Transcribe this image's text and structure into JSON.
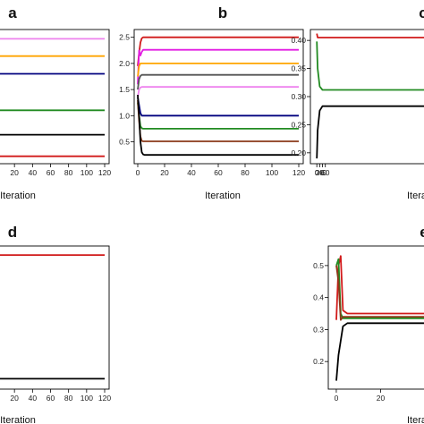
{
  "colors": {
    "red": "#d11a1a",
    "magenta": "#e21ce2",
    "orange": "#ffa500",
    "gray": "#555555",
    "violet": "#ee82ee",
    "navy": "#00007f",
    "green": "#228b22",
    "brown": "#8b3a1a",
    "black": "#000000"
  },
  "chart_data": [
    {
      "panel": "a",
      "type": "line",
      "xlabel": "Iteration",
      "ylabel": "",
      "xlim": [
        0,
        120
      ],
      "ylim": [
        -0.05,
        2.6
      ],
      "xticks": [
        20,
        40,
        60,
        80,
        100,
        120
      ],
      "yticks": [],
      "series": [
        {
          "color": "violet",
          "y_final": 2.48
        },
        {
          "color": "orange",
          "y_final": 2.12
        },
        {
          "color": "navy",
          "y_final": 1.75
        },
        {
          "color": "green",
          "y_final": 0.99
        },
        {
          "color": "black",
          "y_final": 0.48
        },
        {
          "color": "red",
          "y_final": 0.03
        }
      ]
    },
    {
      "panel": "b",
      "type": "line",
      "xlabel": "Iteration",
      "ylabel": "",
      "xlim": [
        0,
        120
      ],
      "ylim": [
        0.15,
        2.58
      ],
      "xticks": [
        0,
        20,
        40,
        60,
        80,
        100,
        120
      ],
      "yticks": [
        0.5,
        1.0,
        1.5,
        2.0,
        2.5
      ],
      "series": [
        {
          "color": "red",
          "x": [
            0,
            1,
            2,
            3,
            4,
            120
          ],
          "y": [
            1.95,
            2.2,
            2.4,
            2.48,
            2.5,
            2.5
          ]
        },
        {
          "color": "magenta",
          "x": [
            0,
            1,
            2,
            3,
            4,
            120
          ],
          "y": [
            1.6,
            2.25,
            2.15,
            2.22,
            2.26,
            2.26
          ]
        },
        {
          "color": "orange",
          "x": [
            0,
            1,
            2,
            3,
            120
          ],
          "y": [
            1.75,
            1.95,
            2.0,
            2.0,
            2.0
          ]
        },
        {
          "color": "gray",
          "x": [
            0,
            1,
            2,
            3,
            120
          ],
          "y": [
            1.5,
            1.7,
            1.76,
            1.78,
            1.78
          ]
        },
        {
          "color": "violet",
          "x": [
            0,
            1,
            2,
            3,
            120
          ],
          "y": [
            1.35,
            1.5,
            1.54,
            1.55,
            1.55
          ]
        },
        {
          "color": "navy",
          "x": [
            0,
            1,
            2,
            3,
            4,
            120
          ],
          "y": [
            1.35,
            1.2,
            1.05,
            1.0,
            1.0,
            1.0
          ]
        },
        {
          "color": "green",
          "x": [
            0,
            1,
            2,
            3,
            4,
            120
          ],
          "y": [
            1.25,
            1.0,
            0.8,
            0.76,
            0.75,
            0.75
          ]
        },
        {
          "color": "brown",
          "x": [
            0,
            1,
            2,
            3,
            4,
            120
          ],
          "y": [
            1.3,
            0.9,
            0.6,
            0.52,
            0.51,
            0.51
          ]
        },
        {
          "color": "black",
          "x": [
            0,
            1,
            2,
            3,
            4,
            5,
            120
          ],
          "y": [
            1.4,
            1.0,
            0.5,
            0.3,
            0.26,
            0.25,
            0.25
          ]
        }
      ]
    },
    {
      "panel": "c",
      "type": "line",
      "xlabel": "Itera",
      "ylabel": "",
      "xlim": [
        -20,
        760
      ],
      "ylim": [
        0.187,
        0.413
      ],
      "xticks": [
        0,
        20,
        40,
        60
      ],
      "xticklabels": [
        "0",
        "20",
        "40",
        "60"
      ],
      "yticks": [
        0.2,
        0.25,
        0.3,
        0.35,
        0.4
      ],
      "series": [
        {
          "color": "red",
          "x": [
            0,
            6,
            20,
            760
          ],
          "y": [
            0.412,
            0.405,
            0.405,
            0.405
          ]
        },
        {
          "color": "green",
          "x": [
            0,
            6,
            20,
            40,
            760
          ],
          "y": [
            0.398,
            0.35,
            0.318,
            0.312,
            0.312
          ]
        },
        {
          "color": "black",
          "x": [
            0,
            6,
            20,
            40,
            760
          ],
          "y": [
            0.19,
            0.24,
            0.275,
            0.283,
            0.283
          ]
        }
      ]
    },
    {
      "panel": "d",
      "type": "line",
      "xlabel": "Iteration",
      "ylabel": "",
      "xlim": [
        0,
        120
      ],
      "ylim": [
        0.0,
        1.0
      ],
      "xticks": [
        20,
        40,
        60,
        80,
        100,
        120
      ],
      "yticks": [],
      "series": [
        {
          "color": "red",
          "y_final": 0.96
        },
        {
          "color": "black",
          "y_final": 0.05
        }
      ]
    },
    {
      "panel": "e",
      "type": "line",
      "xlabel": "Itera",
      "ylabel": "",
      "xlim": [
        -2,
        40
      ],
      "ylim": [
        0.125,
        0.55
      ],
      "xticks": [
        0,
        20
      ],
      "yticks": [
        0.2,
        0.3,
        0.4,
        0.5
      ],
      "series": [
        {
          "color": "red",
          "x": [
            0,
            1,
            2,
            3,
            5,
            40
          ],
          "y": [
            0.33,
            0.5,
            0.53,
            0.36,
            0.35,
            0.35
          ]
        },
        {
          "color": "green",
          "x": [
            0,
            1,
            2,
            3,
            5,
            40
          ],
          "y": [
            0.5,
            0.52,
            0.35,
            0.335,
            0.335,
            0.335
          ]
        },
        {
          "color": "brown",
          "x": [
            0,
            1,
            2,
            3,
            40
          ],
          "y": [
            0.5,
            0.45,
            0.33,
            0.34,
            0.34
          ]
        },
        {
          "color": "black",
          "x": [
            0,
            1,
            3,
            5,
            40
          ],
          "y": [
            0.14,
            0.22,
            0.31,
            0.32,
            0.32
          ]
        }
      ]
    }
  ]
}
